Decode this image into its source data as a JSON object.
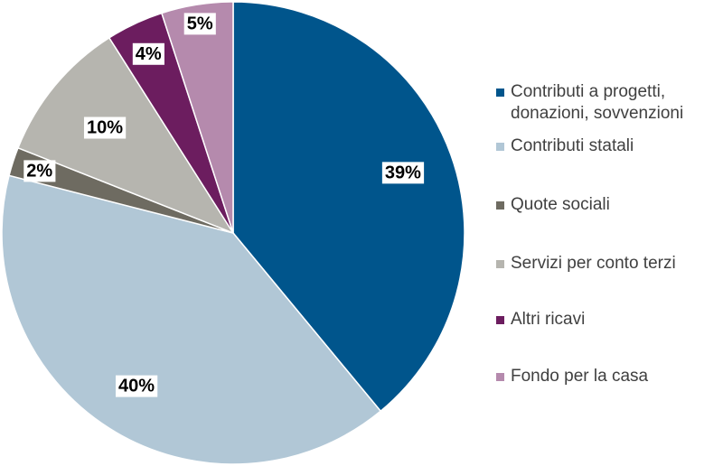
{
  "chart_data": {
    "type": "pie",
    "title": "",
    "start": "top",
    "direction": "clockwise",
    "legend_position": "right",
    "slices": [
      {
        "label": "Contributi a progetti, donazioni, sovvenzioni",
        "value": 39,
        "data_label": "39%",
        "color": "#00558C"
      },
      {
        "label": "Contributi statali",
        "value": 40,
        "data_label": "40%",
        "color": "#B1C7D6"
      },
      {
        "label": "Quote sociali",
        "value": 2,
        "data_label": "2%",
        "color": "#6E6B61"
      },
      {
        "label": "Servizi per conto terzi",
        "value": 10,
        "data_label": "10%",
        "color": "#B6B5AF"
      },
      {
        "label": "Altri ricavi",
        "value": 4,
        "data_label": "4%",
        "color": "#6C1D5F"
      },
      {
        "label": "Fondo per la casa",
        "value": 5,
        "data_label": "5%",
        "color": "#B58AAD"
      }
    ]
  }
}
